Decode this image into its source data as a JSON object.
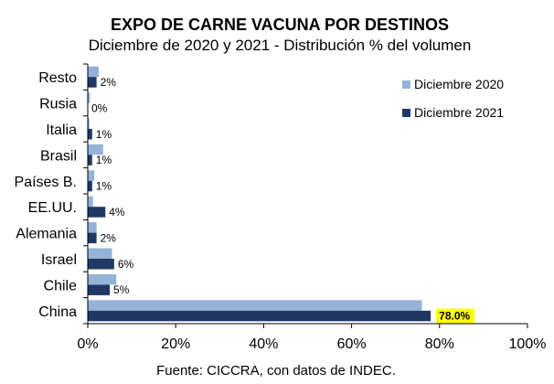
{
  "chart_data": {
    "type": "bar",
    "orientation": "horizontal",
    "title": "EXPO DE CARNE VACUNA POR DESTINOS",
    "subtitle": "Diciembre de 2020 y 2021 - Distribución % del volumen",
    "categories": [
      "Resto",
      "Rusia",
      "Italia",
      "Brasil",
      "Países B.",
      "EE.UU.",
      "Alemania",
      "Israel",
      "Chile",
      "China"
    ],
    "series": [
      {
        "name": "Diciembre 2020",
        "color": "#95b3d7",
        "values": [
          2.5,
          0.5,
          0.4,
          3.5,
          1.5,
          1.2,
          2.0,
          5.5,
          6.5,
          76.0
        ]
      },
      {
        "name": "Diciembre 2021",
        "color": "#1f3864",
        "values": [
          2,
          0,
          1,
          1,
          1,
          4,
          2,
          6,
          5,
          78.0
        ]
      }
    ],
    "data_labels_2021": [
      "2%",
      "0%",
      "1%",
      "1%",
      "1%",
      "4%",
      "2%",
      "6%",
      "5%",
      "78.0%"
    ],
    "highlight_label_color": "#ffff00",
    "xlim": [
      0,
      100
    ],
    "xticks": [
      "0%",
      "20%",
      "40%",
      "60%",
      "80%",
      "100%"
    ],
    "grid": false,
    "legend_position": "top-right",
    "source": "Fuente: CICCRA, con datos de INDEC."
  }
}
